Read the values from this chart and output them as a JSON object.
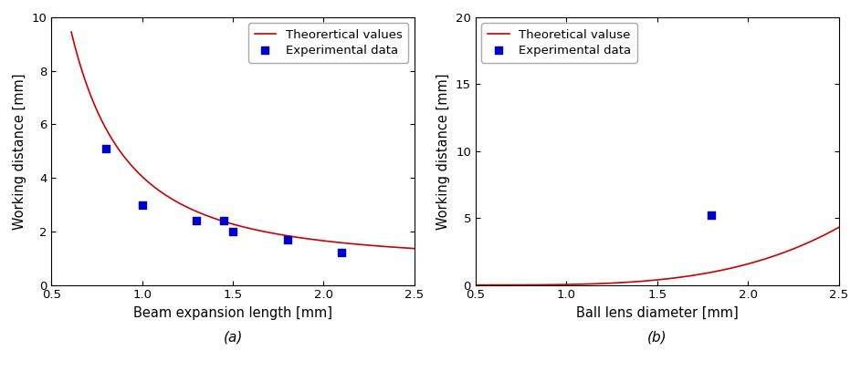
{
  "plot_a": {
    "xlabel": "Beam expansion length [mm]",
    "ylabel": "Working distance [mm]",
    "label_sub": "(a)",
    "xlim": [
      0.5,
      2.5
    ],
    "ylim": [
      0,
      10
    ],
    "xticks": [
      0.5,
      1.0,
      1.5,
      2.0,
      2.5
    ],
    "yticks": [
      0,
      2,
      4,
      6,
      8,
      10
    ],
    "curve_label": "Theorertical values",
    "scatter_label": "Experimental data",
    "exp_x": [
      0.8,
      1.0,
      1.3,
      1.45,
      1.5,
      1.8,
      2.1
    ],
    "exp_y": [
      5.1,
      3.0,
      2.4,
      2.4,
      2.0,
      1.7,
      1.2
    ],
    "curve_A": 3.2,
    "curve_b": 2.0,
    "curve_C": 0.85,
    "curve_xstart": 0.61
  },
  "plot_b": {
    "xlabel": "Ball lens diameter [mm]",
    "ylabel": "Working distance [mm]",
    "label_sub": "(b)",
    "xlim": [
      0.5,
      2.5
    ],
    "ylim": [
      0,
      20
    ],
    "xticks": [
      0.5,
      1.0,
      1.5,
      2.0,
      2.5
    ],
    "yticks": [
      0,
      5,
      10,
      15,
      20
    ],
    "curve_label": "Theoretical valuse",
    "scatter_label": "Experimental data",
    "exp_x": [
      1.8
    ],
    "exp_y": [
      5.2
    ],
    "curve_A": 0.38,
    "curve_n": 3.5,
    "curve_xstart": 0.5
  },
  "line_color": "#cc0000",
  "scatter_color": "#0000cc",
  "background_color": "#ffffff",
  "font_size_label": 10.5,
  "font_size_tick": 9.5,
  "font_size_legend": 9.5,
  "font_size_sub": 11
}
